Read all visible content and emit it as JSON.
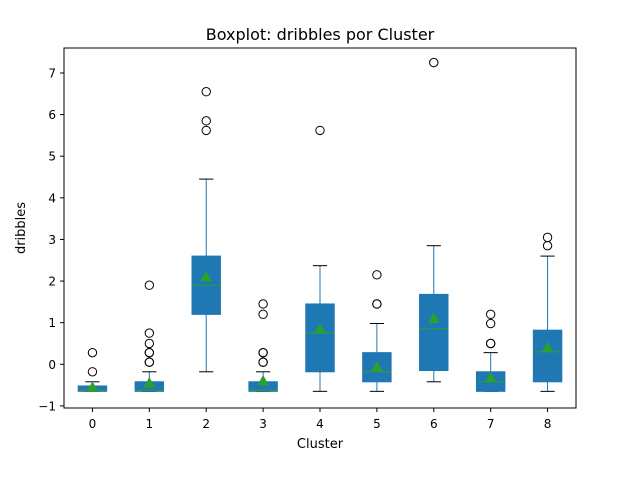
{
  "chart_data": {
    "type": "box",
    "title": "Boxplot: dribbles por Cluster",
    "xlabel": "Cluster",
    "ylabel": "dribbles",
    "categories": [
      "0",
      "1",
      "2",
      "3",
      "4",
      "5",
      "6",
      "7",
      "8"
    ],
    "ylim": [
      -1.05,
      7.6
    ],
    "yticks": [
      "−1",
      "0",
      "1",
      "2",
      "3",
      "4",
      "5",
      "6",
      "7"
    ],
    "box_color": "#1f77b4",
    "median_color": "#2ca02c",
    "mean_color": "#2ca02c",
    "boxes": [
      {
        "q1": -0.65,
        "median": -0.62,
        "q3": -0.52,
        "whislo": -0.65,
        "whishi": -0.42,
        "mean": -0.55,
        "fliers": [
          0.28,
          -0.18
        ]
      },
      {
        "q1": -0.65,
        "median": -0.62,
        "q3": -0.42,
        "whislo": -0.65,
        "whishi": -0.18,
        "mean": -0.45,
        "fliers": [
          1.9,
          0.75,
          0.5,
          0.28,
          0.28,
          0.05,
          0.05
        ]
      },
      {
        "q1": 1.2,
        "median": 1.9,
        "q3": 2.6,
        "whislo": -0.18,
        "whishi": 4.45,
        "mean": 2.1,
        "fliers": [
          6.55,
          5.85,
          5.62
        ]
      },
      {
        "q1": -0.65,
        "median": -0.62,
        "q3": -0.42,
        "whislo": -0.65,
        "whishi": -0.18,
        "mean": -0.4,
        "fliers": [
          1.45,
          1.2,
          0.28,
          0.28,
          0.05,
          0.05
        ]
      },
      {
        "q1": -0.18,
        "median": 0.75,
        "q3": 1.45,
        "whislo": -0.65,
        "whishi": 2.37,
        "mean": 0.85,
        "fliers": [
          5.62
        ]
      },
      {
        "q1": -0.42,
        "median": -0.18,
        "q3": 0.28,
        "whislo": -0.65,
        "whishi": 0.98,
        "mean": -0.06,
        "fliers": [
          2.15,
          1.45,
          1.45
        ]
      },
      {
        "q1": -0.15,
        "median": 0.85,
        "q3": 1.68,
        "whislo": -0.42,
        "whishi": 2.85,
        "mean": 1.1,
        "fliers": [
          7.25
        ]
      },
      {
        "q1": -0.65,
        "median": -0.42,
        "q3": -0.18,
        "whislo": -0.65,
        "whishi": 0.28,
        "mean": -0.33,
        "fliers": [
          1.2,
          0.98,
          0.5,
          0.5
        ]
      },
      {
        "q1": -0.42,
        "median": 0.3,
        "q3": 0.82,
        "whislo": -0.65,
        "whishi": 2.6,
        "mean": 0.4,
        "fliers": [
          3.05,
          2.85
        ]
      }
    ]
  }
}
